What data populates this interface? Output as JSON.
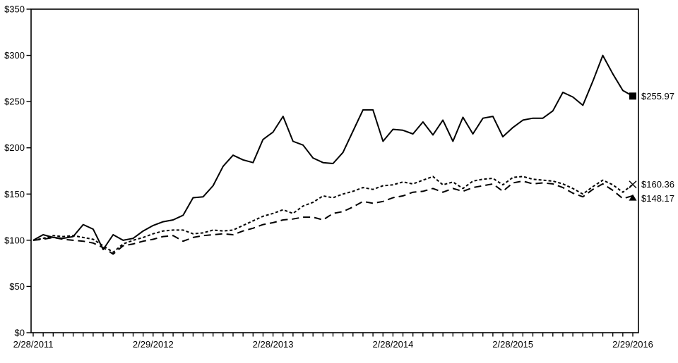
{
  "chart": {
    "background_color": "#ffffff",
    "axis_color": "#000000",
    "series_color": "#000000",
    "y_axis": {
      "tick_labels": [
        "$0",
        "$50",
        "$100",
        "$150",
        "$200",
        "$250",
        "$300",
        "$350"
      ],
      "min": 0,
      "max": 350,
      "step": 50
    },
    "x_axis": {
      "tick_labels": [
        "2/28/2011",
        "2/29/2012",
        "2/28/2013",
        "2/28/2014",
        "2/28/2015",
        "2/29/2016"
      ],
      "label_tick_positions": [
        0,
        12,
        24,
        36,
        48,
        60
      ],
      "minor_tick_count": 61
    }
  },
  "chart_data": {
    "type": "line",
    "title": "",
    "xlabel": "",
    "ylabel": "",
    "ylim": [
      0,
      350
    ],
    "grid": false,
    "legend": "none",
    "x_unit": "one point per month, 2/28/2011 through 2/29/2016 (61 points)",
    "x_tick_dates": [
      "2/28/2011",
      "2/29/2012",
      "2/28/2013",
      "2/28/2014",
      "2/28/2015",
      "2/29/2016"
    ],
    "series": [
      {
        "name": "solid-line-series",
        "line_style": "solid",
        "end_marker": "square",
        "end_label": "$255.97",
        "end_value": 255.97,
        "values": [
          100,
          106,
          103,
          102,
          104,
          117,
          112,
          90,
          106,
          100,
          102,
          110,
          116,
          120,
          122,
          127,
          146,
          147,
          159,
          180,
          192,
          187,
          184,
          209,
          217,
          234,
          207,
          203,
          189,
          184,
          183,
          195,
          218,
          241,
          241,
          207,
          220,
          219,
          215,
          228,
          214,
          230,
          207,
          233,
          215,
          232,
          234,
          212,
          222,
          230,
          232,
          232,
          240,
          260,
          255,
          246,
          272,
          300,
          280,
          262,
          255.97
        ]
      },
      {
        "name": "short-dashed-line-series",
        "line_style": "short-dash",
        "end_marker": "x",
        "end_label": "$160.36",
        "end_value": 160.36,
        "values": [
          100,
          102,
          105,
          104,
          105,
          103,
          101,
          94,
          87,
          96,
          100,
          103,
          107,
          110,
          111,
          111,
          107,
          108,
          111,
          110,
          111,
          116,
          121,
          126,
          129,
          133,
          129,
          137,
          141,
          148,
          146,
          150,
          153,
          157,
          155,
          159,
          160,
          163,
          161,
          165,
          169,
          160,
          163,
          156,
          164,
          166,
          167,
          160,
          168,
          169,
          166,
          165,
          164,
          161,
          156,
          150,
          158,
          165,
          160,
          152,
          160.36
        ]
      },
      {
        "name": "long-dashed-line-series",
        "line_style": "long-dash",
        "end_marker": "triangle",
        "end_label": "$148.17",
        "end_value": 148.17,
        "values": [
          100,
          101,
          103,
          101,
          100,
          99,
          97,
          92,
          85,
          94,
          96,
          99,
          101,
          104,
          105,
          99,
          103,
          105,
          106,
          107,
          106,
          110,
          113,
          117,
          119,
          122,
          123,
          125,
          125,
          122,
          129,
          131,
          136,
          142,
          140,
          142,
          146,
          148,
          152,
          153,
          156,
          152,
          156,
          153,
          157,
          159,
          161,
          153,
          162,
          164,
          161,
          162,
          161,
          157,
          151,
          147,
          155,
          161,
          154,
          145,
          148.17
        ]
      }
    ]
  }
}
